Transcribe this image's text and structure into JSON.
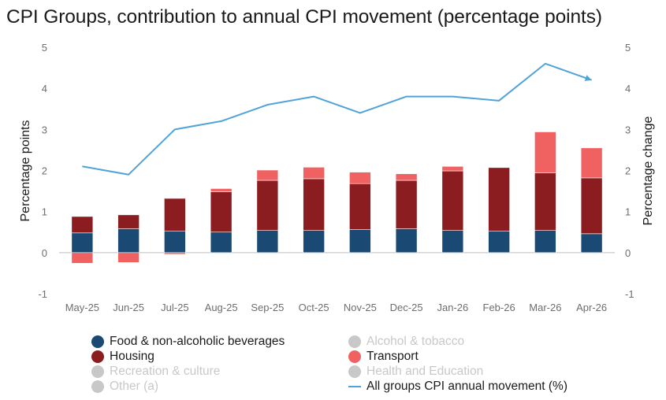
{
  "title": "CPI Groups, contribution to annual CPI movement (percentage points)",
  "chart_data": {
    "type": "bar",
    "stacked": true,
    "categories": [
      "May-25",
      "Jun-25",
      "Jul-25",
      "Aug-25",
      "Sep-25",
      "Oct-25",
      "Nov-25",
      "Dec-25",
      "Jan-26",
      "Feb-26",
      "Mar-26",
      "Apr-26"
    ],
    "ylabel": "Percentage points",
    "y2label": "Percentage change",
    "ylim": [
      -1,
      5
    ],
    "y2lim": [
      -1,
      5
    ],
    "yticks": [
      "-1",
      "0",
      "1",
      "2",
      "3",
      "4",
      "5"
    ],
    "grid": "horizontal-zero-line-only",
    "legend_position": "bottom",
    "series": [
      {
        "name": "Food & non-alcoholic beverages",
        "color": "#1a4a73",
        "values": [
          0.48,
          0.58,
          0.52,
          0.5,
          0.54,
          0.54,
          0.56,
          0.58,
          0.54,
          0.52,
          0.54,
          0.46
        ]
      },
      {
        "name": "Housing",
        "color": "#8b1c1f",
        "values": [
          0.4,
          0.34,
          0.8,
          0.98,
          1.22,
          1.26,
          1.12,
          1.18,
          1.45,
          1.55,
          1.4,
          1.36
        ]
      },
      {
        "name": "Transport",
        "color": "#f06262",
        "values": [
          -0.26,
          -0.24,
          -0.04,
          0.08,
          0.25,
          0.28,
          0.28,
          0.16,
          0.11,
          0.0,
          1.0,
          0.73
        ]
      }
    ],
    "line_series": {
      "name": "All groups CPI annual movement (%)",
      "color": "#4fa3d8",
      "axis": "right",
      "values": [
        2.1,
        1.9,
        3.0,
        3.2,
        3.6,
        3.8,
        3.4,
        3.8,
        3.8,
        3.7,
        4.6,
        4.2
      ]
    },
    "legend": [
      {
        "name": "Food & non-alcoholic beverages",
        "color": "#1a4a73",
        "active": true
      },
      {
        "name": "Alcohol & tobacco",
        "color": "#c8c8c8",
        "active": false
      },
      {
        "name": "Housing",
        "color": "#8b1c1f",
        "active": true
      },
      {
        "name": "Transport",
        "color": "#f06262",
        "active": true
      },
      {
        "name": "Recreation & culture",
        "color": "#c8c8c8",
        "active": false
      },
      {
        "name": "Health and Education",
        "color": "#c8c8c8",
        "active": false
      },
      {
        "name": "Other (a)",
        "color": "#c8c8c8",
        "active": false
      },
      {
        "name": "All groups CPI annual movement (%)",
        "color": "#4fa3d8",
        "active": true,
        "kind": "line"
      }
    ]
  }
}
